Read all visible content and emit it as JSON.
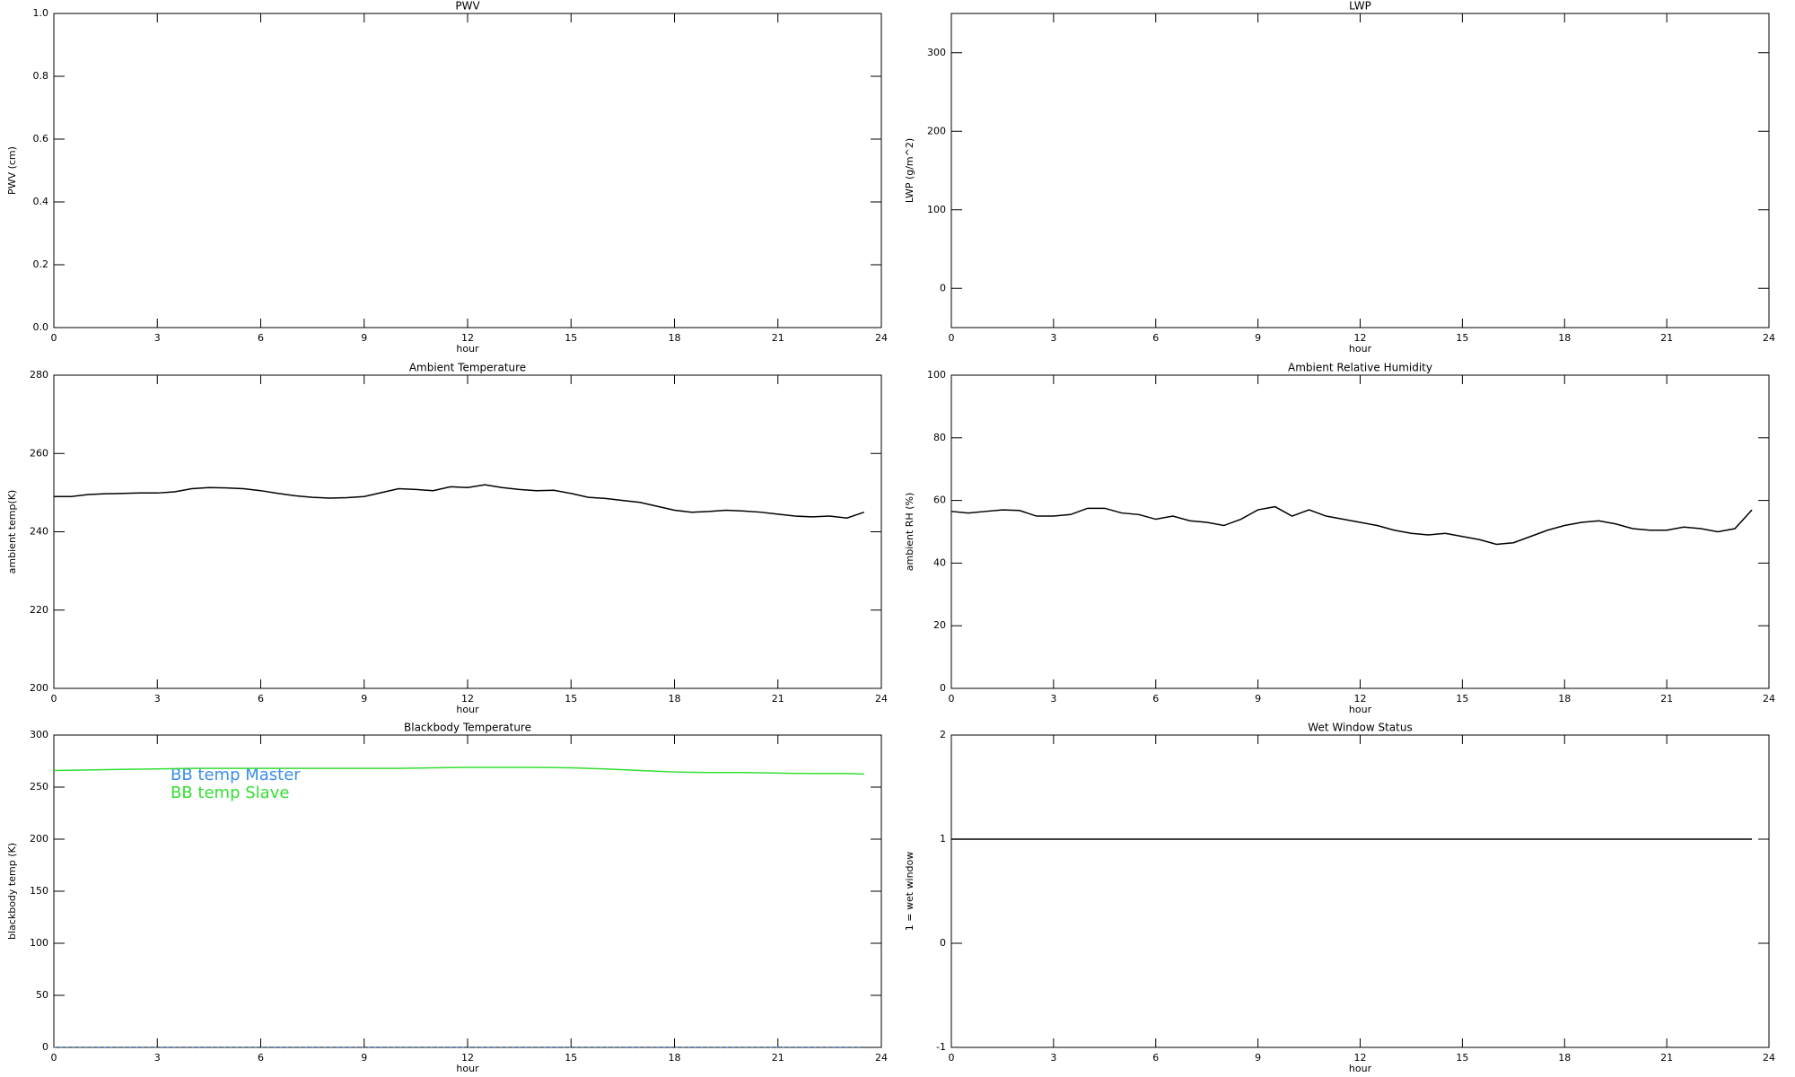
{
  "chart_data": [
    {
      "type": "line",
      "title": "PWV",
      "xlabel": "hour",
      "ylabel": "PWV (cm)",
      "xlim": [
        0,
        24
      ],
      "xticks": [
        0,
        3,
        6,
        9,
        12,
        15,
        18,
        21,
        24
      ],
      "ylim": [
        0,
        1
      ],
      "yticks": [
        {
          "value": 0,
          "label": "0.0"
        },
        {
          "value": 0.2,
          "label": "0.2"
        },
        {
          "value": 0.4,
          "label": "0.4"
        },
        {
          "value": 0.6,
          "label": "0.6"
        },
        {
          "value": 0.8,
          "label": "0.8"
        },
        {
          "value": 1,
          "label": "1.0"
        }
      ],
      "series": []
    },
    {
      "type": "line",
      "title": "LWP",
      "xlabel": "hour",
      "ylabel": "LWP (g/m^2)",
      "xlim": [
        0,
        24
      ],
      "xticks": [
        0,
        3,
        6,
        9,
        12,
        15,
        18,
        21,
        24
      ],
      "ylim": [
        -50,
        350
      ],
      "yticks": [
        0,
        100,
        200,
        300
      ],
      "series": []
    },
    {
      "type": "line",
      "title": "Ambient Temperature",
      "xlabel": "hour",
      "ylabel": "ambient temp(K)",
      "xlim": [
        0,
        24
      ],
      "xticks": [
        0,
        3,
        6,
        9,
        12,
        15,
        18,
        21,
        24
      ],
      "ylim": [
        200,
        280
      ],
      "yticks": [
        200,
        220,
        240,
        260,
        280
      ],
      "x": [
        0,
        0.5,
        1,
        1.5,
        2,
        2.5,
        3,
        3.5,
        4,
        4.5,
        5,
        5.5,
        6,
        6.5,
        7,
        7.5,
        8,
        8.5,
        9,
        9.5,
        10,
        10.5,
        11,
        11.5,
        12,
        12.5,
        13,
        13.5,
        14,
        14.5,
        15,
        15.5,
        16,
        16.5,
        17,
        17.5,
        18,
        18.5,
        19,
        19.5,
        20,
        20.5,
        21,
        21.5,
        22,
        22.5,
        23,
        23.5
      ],
      "series": [
        {
          "color": "#000000",
          "values": [
            249,
            249,
            249.5,
            249.7,
            249.8,
            249.9,
            249.9,
            250.2,
            251,
            251.3,
            251.2,
            251,
            250.5,
            249.8,
            249.2,
            248.8,
            248.6,
            248.7,
            249,
            250,
            251,
            250.8,
            250.5,
            251.5,
            251.3,
            252,
            251.3,
            250.8,
            250.5,
            250.6,
            249.8,
            248.8,
            248.5,
            248,
            247.5,
            246.5,
            245.5,
            245,
            245.2,
            245.5,
            245.3,
            245,
            244.5,
            244,
            243.8,
            244,
            243.5,
            245
          ]
        }
      ]
    },
    {
      "type": "line",
      "title": "Ambient Relative Humidity",
      "xlabel": "hour",
      "ylabel": "ambient RH (%)",
      "xlim": [
        0,
        24
      ],
      "xticks": [
        0,
        3,
        6,
        9,
        12,
        15,
        18,
        21,
        24
      ],
      "ylim": [
        0,
        100
      ],
      "yticks": [
        0,
        20,
        40,
        60,
        80,
        100
      ],
      "x": [
        0,
        0.5,
        1,
        1.5,
        2,
        2.5,
        3,
        3.5,
        4,
        4.5,
        5,
        5.5,
        6,
        6.5,
        7,
        7.5,
        8,
        8.5,
        9,
        9.5,
        10,
        10.5,
        11,
        11.5,
        12,
        12.5,
        13,
        13.5,
        14,
        14.5,
        15,
        15.5,
        16,
        16.5,
        17,
        17.5,
        18,
        18.5,
        19,
        19.5,
        20,
        20.5,
        21,
        21.5,
        22,
        22.5,
        23,
        23.5
      ],
      "series": [
        {
          "color": "#000000",
          "values": [
            56.5,
            56,
            56.5,
            57,
            56.8,
            55,
            55,
            55.5,
            57.5,
            57.5,
            56,
            55.5,
            54,
            55,
            53.5,
            53,
            52,
            54,
            57,
            58,
            55,
            57,
            55,
            54,
            53,
            52,
            50.5,
            49.5,
            49,
            49.5,
            48.5,
            47.5,
            46,
            46.5,
            48.5,
            50.5,
            52,
            53,
            53.5,
            52.5,
            51,
            50.5,
            50.5,
            51.5,
            51,
            50,
            51,
            57
          ]
        }
      ]
    },
    {
      "type": "line",
      "title": "Blackbody Temperature",
      "xlabel": "hour",
      "ylabel": "blackbody temp (K)",
      "xlim": [
        0,
        24
      ],
      "xticks": [
        0,
        3,
        6,
        9,
        12,
        15,
        18,
        21,
        24
      ],
      "ylim": [
        0,
        300
      ],
      "yticks": [
        0,
        50,
        100,
        150,
        200,
        250,
        300
      ],
      "legend": "upper left",
      "x": [
        0,
        1,
        2,
        3,
        4,
        5,
        6,
        7,
        8,
        9,
        10,
        11,
        12,
        13,
        14,
        15,
        16,
        17,
        18,
        19,
        20,
        21,
        22,
        23,
        23.5
      ],
      "series": [
        {
          "name": "BB temp Master",
          "color": "#3a8ee6",
          "dash": true,
          "values": [
            0,
            0,
            0,
            0,
            0,
            0,
            0,
            0,
            0,
            0,
            0,
            0,
            0,
            0,
            0,
            0,
            0,
            0,
            0,
            0,
            0,
            0,
            0,
            0,
            0
          ]
        },
        {
          "name": "BB temp Slave",
          "color": "#33dd33",
          "values": [
            266,
            266.5,
            267,
            267.5,
            268,
            268,
            268,
            268,
            268,
            268,
            268,
            268.5,
            269,
            269,
            269,
            268.5,
            267.5,
            266,
            264.5,
            264,
            264,
            263.5,
            263,
            263,
            262.5
          ]
        }
      ]
    },
    {
      "type": "line",
      "title": "Wet Window Status",
      "xlabel": "hour",
      "ylabel": "1 = wet window",
      "xlim": [
        0,
        24
      ],
      "xticks": [
        0,
        3,
        6,
        9,
        12,
        15,
        18,
        21,
        24
      ],
      "ylim": [
        -1,
        2
      ],
      "yticks": [
        -1,
        0,
        1,
        2
      ],
      "x": [
        0,
        23.5
      ],
      "series": [
        {
          "color": "#000000",
          "values": [
            1,
            1
          ]
        }
      ]
    }
  ]
}
